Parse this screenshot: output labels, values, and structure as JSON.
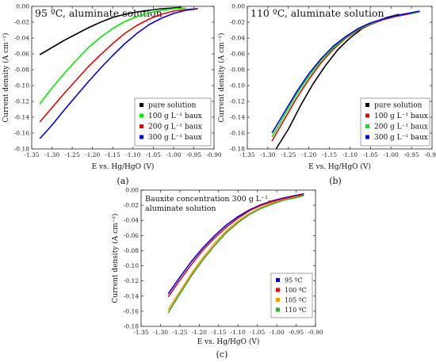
{
  "chart_data": [
    {
      "id": "a",
      "panel_label": "(a)",
      "type": "line",
      "title": "95 ºC, aluminate solution",
      "xlabel": "E vs. Hg/HgO (V)",
      "ylabel": "Current density (A cm⁻²)",
      "xlim": [
        -1.35,
        -0.9
      ],
      "ylim": [
        -0.18,
        0.0
      ],
      "xticks": [
        -1.35,
        -1.3,
        -1.25,
        -1.2,
        -1.15,
        -1.1,
        -1.05,
        -1.0,
        -0.95,
        -0.9
      ],
      "xtick_labels": [
        "-1.35",
        "-1.30",
        "-1.25",
        "-1.20",
        "-1.15",
        "-1.10",
        "-1.05",
        "-1.00",
        "-0.95",
        "-0.90"
      ],
      "yticks": [
        0.0,
        -0.02,
        -0.04,
        -0.06,
        -0.08,
        -0.1,
        -0.12,
        -0.14,
        -0.16,
        -0.18
      ],
      "ytick_labels": [
        "0.00",
        "-0.02",
        "-0.04",
        "-0.06",
        "-0.08",
        "-0.10",
        "-0.12",
        "-0.14",
        "-0.16",
        "-0.18"
      ],
      "legend_position": "bottom-right",
      "series": [
        {
          "name": "pure solution",
          "color": "#000000",
          "x": [
            -1.33,
            -1.3,
            -1.27,
            -1.24,
            -1.21,
            -1.18,
            -1.15,
            -1.12,
            -1.09,
            -1.06,
            -1.03,
            -1.0,
            -0.98
          ],
          "y": [
            -0.061,
            -0.052,
            -0.043,
            -0.035,
            -0.027,
            -0.02,
            -0.014,
            -0.01,
            -0.007,
            -0.005,
            -0.003,
            -0.002,
            -0.001
          ]
        },
        {
          "name": "100 g L⁻¹ baux",
          "color": "#00ee00",
          "x": [
            -1.33,
            -1.3,
            -1.27,
            -1.24,
            -1.21,
            -1.18,
            -1.15,
            -1.12,
            -1.09,
            -1.06,
            -1.03,
            -1.0,
            -0.97
          ],
          "y": [
            -0.123,
            -0.103,
            -0.085,
            -0.068,
            -0.052,
            -0.039,
            -0.028,
            -0.019,
            -0.013,
            -0.008,
            -0.005,
            -0.003,
            -0.002
          ]
        },
        {
          "name": "200 g L⁻¹ baux",
          "color": "#ee0000",
          "x": [
            -1.33,
            -1.3,
            -1.27,
            -1.24,
            -1.21,
            -1.18,
            -1.15,
            -1.12,
            -1.09,
            -1.06,
            -1.03,
            -1.0,
            -0.97,
            -0.94
          ],
          "y": [
            -0.146,
            -0.128,
            -0.11,
            -0.093,
            -0.076,
            -0.061,
            -0.047,
            -0.034,
            -0.024,
            -0.016,
            -0.01,
            -0.006,
            -0.004,
            -0.003
          ]
        },
        {
          "name": "300 g L⁻¹ baux",
          "color": "#0000ee",
          "x": [
            -1.33,
            -1.3,
            -1.27,
            -1.24,
            -1.21,
            -1.18,
            -1.15,
            -1.12,
            -1.09,
            -1.06,
            -1.03,
            -1.0,
            -0.97,
            -0.94
          ],
          "y": [
            -0.167,
            -0.15,
            -0.131,
            -0.113,
            -0.095,
            -0.078,
            -0.062,
            -0.047,
            -0.034,
            -0.023,
            -0.015,
            -0.009,
            -0.005,
            -0.003
          ]
        }
      ]
    },
    {
      "id": "b",
      "panel_label": "(b)",
      "type": "line",
      "title": "110 ºC, aluminate solution",
      "xlabel": "E vs. Hg/HgO (V)",
      "ylabel": "Current density (A cm⁻²)",
      "xlim": [
        -1.35,
        -0.9
      ],
      "ylim": [
        -0.18,
        0.0
      ],
      "xticks": [
        -1.35,
        -1.3,
        -1.25,
        -1.2,
        -1.15,
        -1.1,
        -1.05,
        -1.0,
        -0.95,
        -0.9
      ],
      "xtick_labels": [
        "-1.35",
        "-1.30",
        "-1.25",
        "-1.20",
        "-1.15",
        "-1.10",
        "-1.05",
        "-1.00",
        "-0.95",
        "-0.90"
      ],
      "yticks": [
        0.0,
        -0.02,
        -0.04,
        -0.06,
        -0.08,
        -0.1,
        -0.12,
        -0.14,
        -0.16,
        -0.18
      ],
      "ytick_labels": [
        "0.00",
        "-0.02",
        "-0.04",
        "-0.06",
        "-0.08",
        "-0.10",
        "-0.12",
        "-0.14",
        "-0.16",
        "-0.18"
      ],
      "legend_position": "bottom-right",
      "series": [
        {
          "name": "pure solution",
          "color": "#000000",
          "x": [
            -1.28,
            -1.25,
            -1.22,
            -1.19,
            -1.16,
            -1.13,
            -1.1,
            -1.07,
            -1.04,
            -1.01,
            -0.98
          ],
          "y": [
            -0.18,
            -0.155,
            -0.125,
            -0.098,
            -0.075,
            -0.055,
            -0.04,
            -0.028,
            -0.02,
            -0.014,
            -0.01
          ]
        },
        {
          "name": "100 g L⁻¹ baux",
          "color": "#ee0000",
          "x": [
            -1.29,
            -1.26,
            -1.23,
            -1.2,
            -1.17,
            -1.14,
            -1.11,
            -1.08,
            -1.05,
            -1.02,
            -0.99,
            -0.96,
            -0.93
          ],
          "y": [
            -0.17,
            -0.143,
            -0.116,
            -0.092,
            -0.071,
            -0.054,
            -0.04,
            -0.03,
            -0.023,
            -0.017,
            -0.013,
            -0.01,
            -0.007
          ]
        },
        {
          "name": "200 g L⁻¹ baux",
          "color": "#00ee00",
          "x": [
            -1.29,
            -1.26,
            -1.23,
            -1.2,
            -1.17,
            -1.14,
            -1.11,
            -1.08,
            -1.05,
            -1.02,
            -0.99,
            -0.96,
            -0.93
          ],
          "y": [
            -0.165,
            -0.138,
            -0.111,
            -0.088,
            -0.068,
            -0.052,
            -0.039,
            -0.029,
            -0.022,
            -0.016,
            -0.012,
            -0.009,
            -0.007
          ]
        },
        {
          "name": "300 g L⁻¹ baux",
          "color": "#0000ee",
          "x": [
            -1.29,
            -1.26,
            -1.23,
            -1.2,
            -1.17,
            -1.14,
            -1.11,
            -1.08,
            -1.05,
            -1.02,
            -0.99,
            -0.96,
            -0.93
          ],
          "y": [
            -0.16,
            -0.134,
            -0.108,
            -0.085,
            -0.066,
            -0.05,
            -0.038,
            -0.028,
            -0.021,
            -0.016,
            -0.012,
            -0.009,
            -0.006
          ]
        }
      ]
    },
    {
      "id": "c",
      "panel_label": "(c)",
      "type": "line",
      "title": "Bauxite concentration 300 g L⁻¹, aluminate solution",
      "title_lines": [
        "Bauxite concentration 300 g L⁻¹,",
        "aluminate solution"
      ],
      "xlabel": "E vs. Hg/HgO (V)",
      "ylabel": "Current density (A cm⁻²)",
      "xlim": [
        -1.35,
        -0.9
      ],
      "ylim": [
        -0.18,
        0.0
      ],
      "xticks": [
        -1.35,
        -1.3,
        -1.25,
        -1.2,
        -1.15,
        -1.1,
        -1.05,
        -1.0,
        -0.95,
        -0.9
      ],
      "xtick_labels": [
        "-1.35",
        "-1.30",
        "-1.25",
        "-1.20",
        "-1.15",
        "-1.10",
        "-1.05",
        "-1.00",
        "-0.95",
        "-0.90"
      ],
      "yticks": [
        0.0,
        -0.02,
        -0.04,
        -0.06,
        -0.08,
        -0.1,
        -0.12,
        -0.14,
        -0.16,
        -0.18
      ],
      "ytick_labels": [
        "0.00",
        "-0.02",
        "-0.04",
        "-0.06",
        "-0.08",
        "-0.10",
        "-0.12",
        "-0.14",
        "-0.16",
        "-0.18"
      ],
      "legend_position": "bottom-right",
      "series": [
        {
          "name": "95 ºC",
          "color": "#0000ee",
          "x": [
            -1.28,
            -1.25,
            -1.22,
            -1.19,
            -1.16,
            -1.13,
            -1.1,
            -1.07,
            -1.04,
            -1.01,
            -0.98,
            -0.95,
            -0.93
          ],
          "y": [
            -0.137,
            -0.115,
            -0.094,
            -0.076,
            -0.06,
            -0.046,
            -0.035,
            -0.026,
            -0.019,
            -0.014,
            -0.01,
            -0.007,
            -0.005
          ]
        },
        {
          "name": "100 ºC",
          "color": "#ee0000",
          "x": [
            -1.28,
            -1.25,
            -1.22,
            -1.19,
            -1.16,
            -1.13,
            -1.1,
            -1.07,
            -1.04,
            -1.01,
            -0.98,
            -0.95,
            -0.93
          ],
          "y": [
            -0.141,
            -0.119,
            -0.098,
            -0.079,
            -0.063,
            -0.049,
            -0.037,
            -0.027,
            -0.02,
            -0.015,
            -0.011,
            -0.008,
            -0.006
          ]
        },
        {
          "name": "105 ºC",
          "color": "#ff9900",
          "x": [
            -1.28,
            -1.25,
            -1.22,
            -1.19,
            -1.16,
            -1.13,
            -1.1,
            -1.07,
            -1.04,
            -1.01,
            -0.98,
            -0.95,
            -0.93
          ],
          "y": [
            -0.158,
            -0.134,
            -0.11,
            -0.089,
            -0.07,
            -0.054,
            -0.041,
            -0.031,
            -0.023,
            -0.017,
            -0.013,
            -0.009,
            -0.007
          ]
        },
        {
          "name": "110 ºC",
          "color": "#33aa33",
          "x": [
            -1.28,
            -1.25,
            -1.22,
            -1.19,
            -1.16,
            -1.13,
            -1.1,
            -1.07,
            -1.04,
            -1.01,
            -0.98,
            -0.95,
            -0.93
          ],
          "y": [
            -0.162,
            -0.137,
            -0.113,
            -0.092,
            -0.073,
            -0.056,
            -0.043,
            -0.032,
            -0.024,
            -0.018,
            -0.013,
            -0.01,
            -0.007
          ]
        }
      ]
    }
  ]
}
